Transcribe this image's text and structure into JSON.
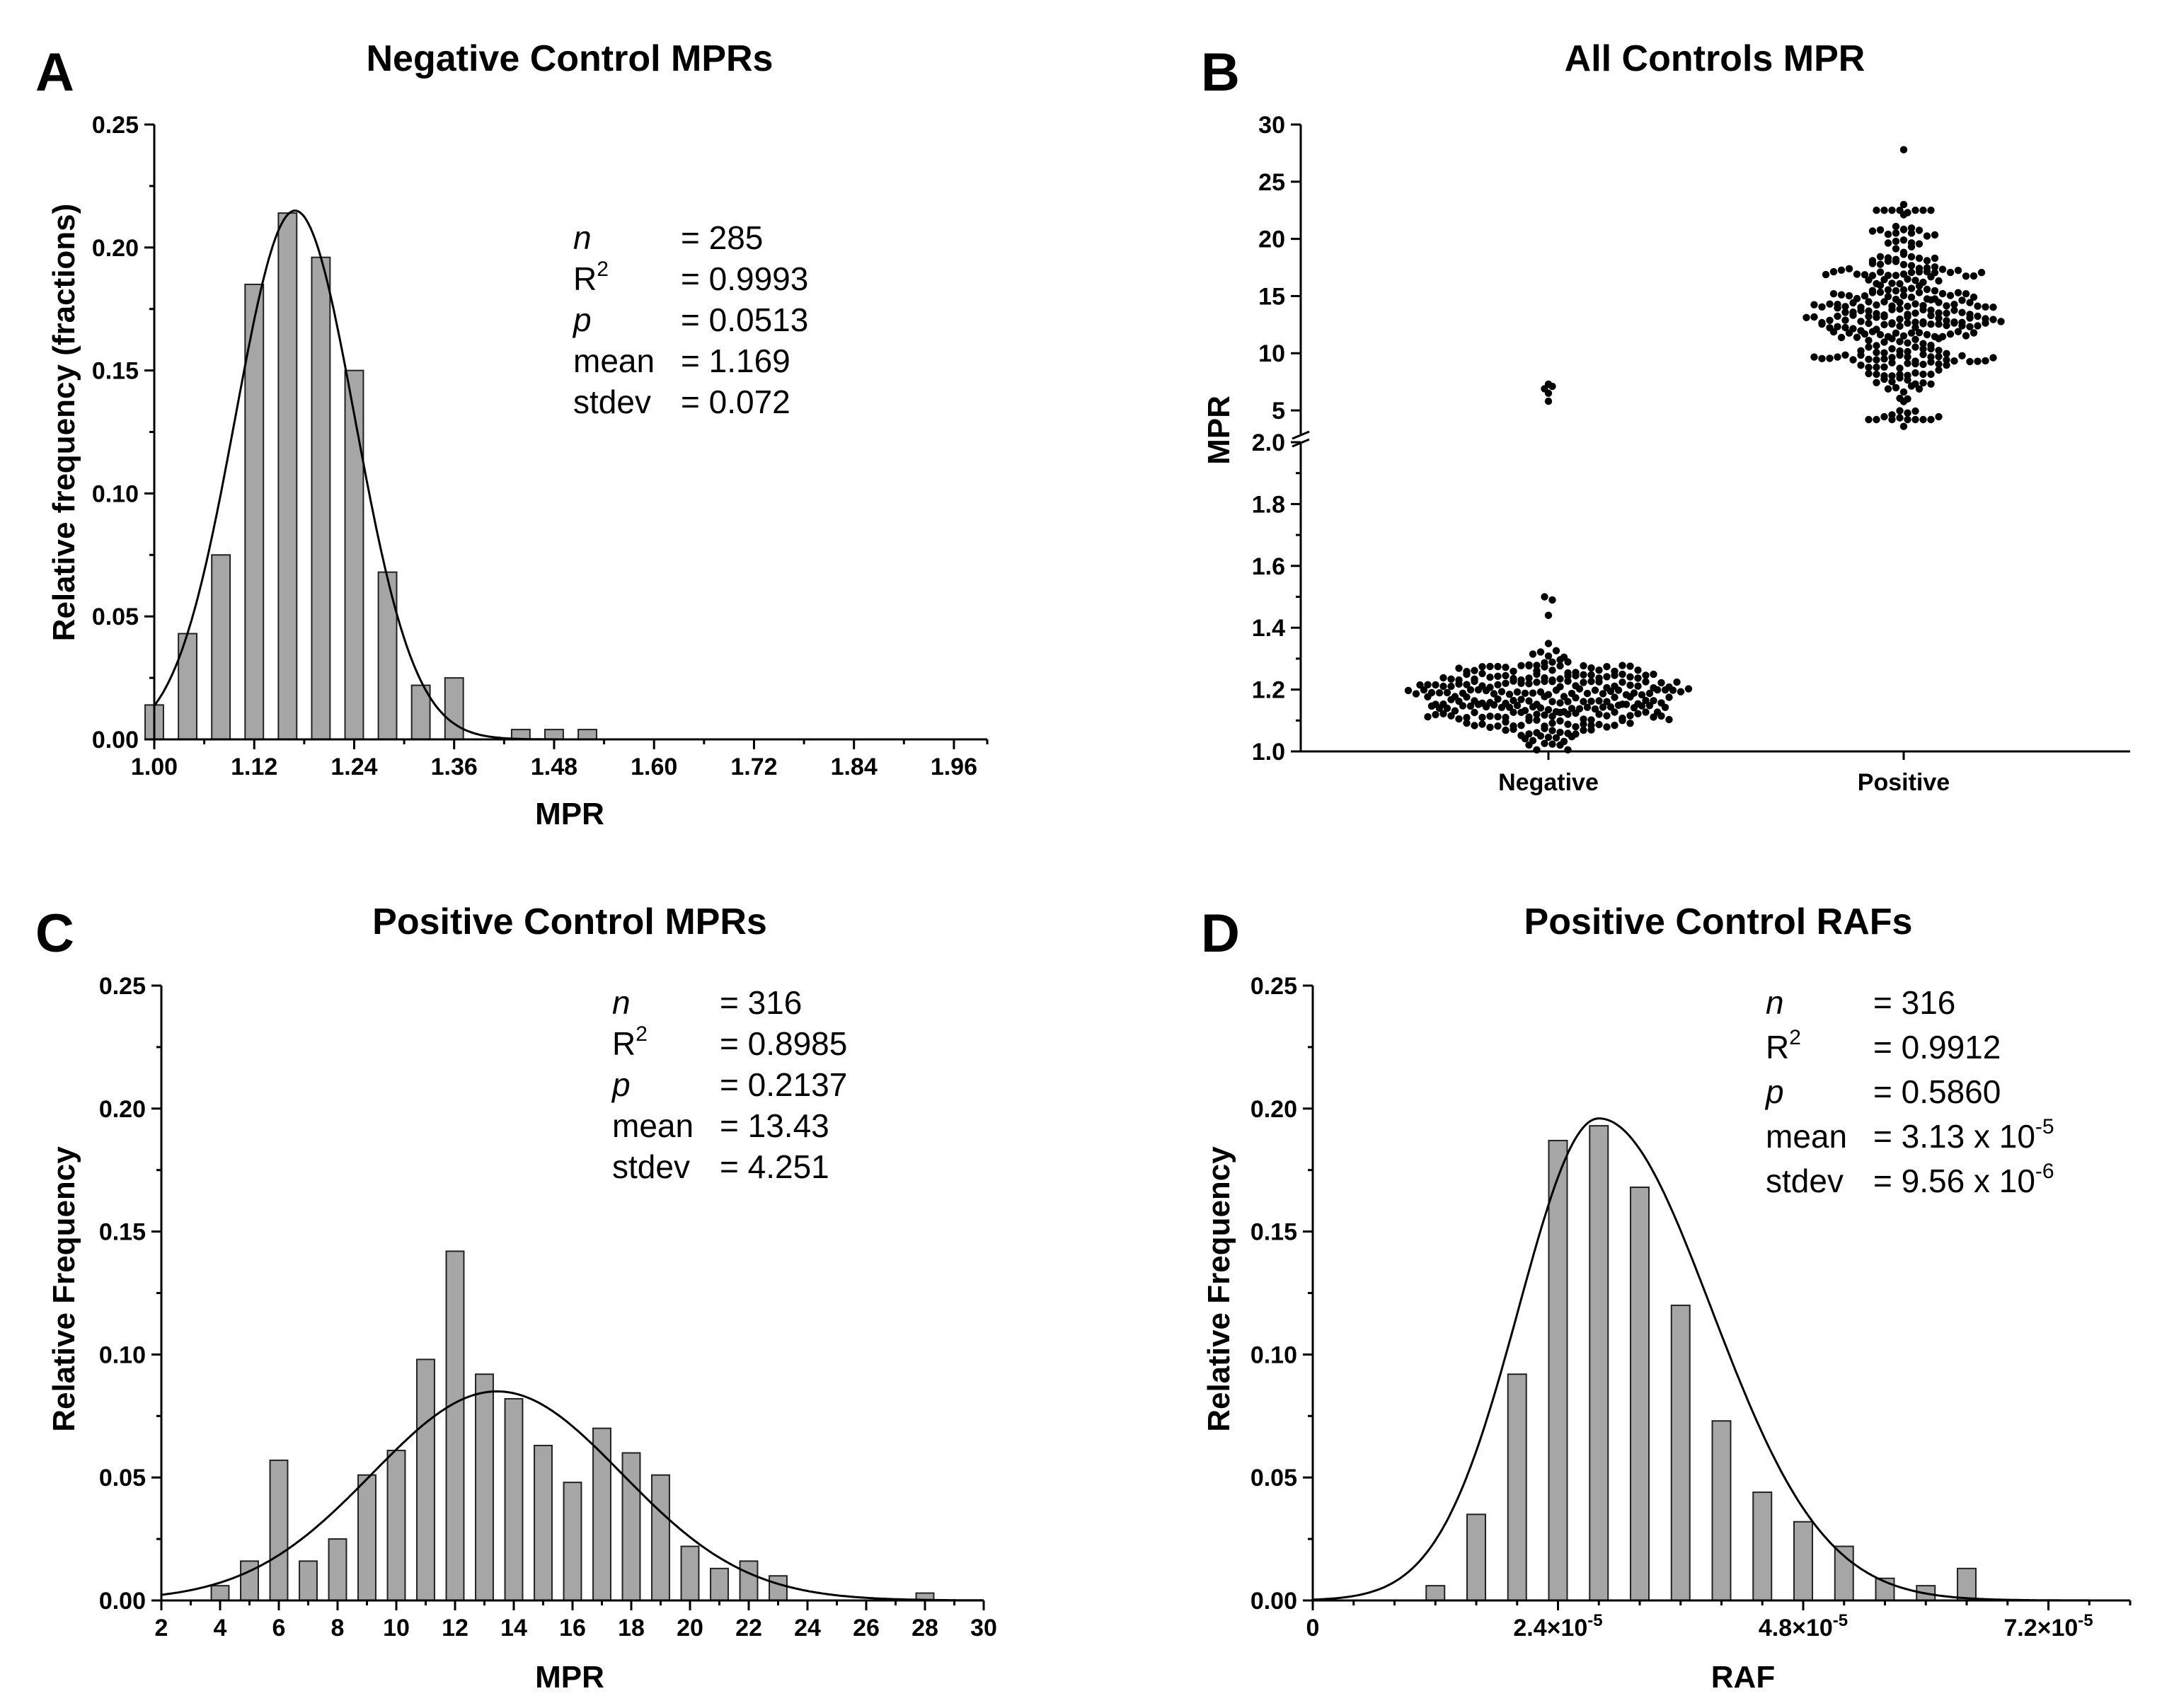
{
  "chart_data": [
    {
      "panel": "A",
      "type": "bar",
      "title": "Negative Control MPRs",
      "xlabel": "MPR",
      "ylabel": "Relative frequency (fractions)",
      "xlim": [
        1.0,
        2.0
      ],
      "ylim": [
        0,
        0.25
      ],
      "x_ticks": [
        1.0,
        1.12,
        1.24,
        1.36,
        1.48,
        1.6,
        1.72,
        1.84,
        1.96
      ],
      "x_tick_labels": [
        "1.00",
        "1.12",
        "1.24",
        "1.36",
        "1.48",
        "1.60",
        "1.72",
        "1.84",
        "1.96"
      ],
      "y_ticks": [
        0,
        0.05,
        0.1,
        0.15,
        0.2,
        0.25
      ],
      "y_tick_labels": [
        "0.00",
        "0.05",
        "0.10",
        "0.15",
        "0.20",
        "0.25"
      ],
      "bin_width": 0.04,
      "bar_fraction": 0.55,
      "x": [
        1.0,
        1.04,
        1.08,
        1.12,
        1.16,
        1.2,
        1.24,
        1.28,
        1.32,
        1.36,
        1.44,
        1.48,
        1.52
      ],
      "values": [
        0.014,
        0.043,
        0.075,
        0.185,
        0.214,
        0.196,
        0.15,
        0.068,
        0.022,
        0.025,
        0.004,
        0.004,
        0.004
      ],
      "fit": {
        "mean": 1.169,
        "sd": 0.072,
        "peak": 0.215
      },
      "stats": [
        {
          "label": "n",
          "italic": true,
          "sup": "",
          "value": "= 285",
          "vsup": ""
        },
        {
          "label": "R",
          "italic": false,
          "sup": "2",
          "value": "= 0.9993",
          "vsup": ""
        },
        {
          "label": "p",
          "italic": true,
          "sup": "",
          "value": "= 0.0513",
          "vsup": ""
        },
        {
          "label": "mean",
          "italic": false,
          "sup": "",
          "value": "= 1.169",
          "vsup": ""
        },
        {
          "label": "stdev",
          "italic": false,
          "sup": "",
          "value": "= 0.072",
          "vsup": ""
        }
      ]
    },
    {
      "panel": "B",
      "type": "scatter",
      "title": "All Controls MPR",
      "ylabel": "MPR",
      "categories": [
        "Negative",
        "Positive"
      ],
      "y_lower": {
        "range": [
          1.0,
          2.0
        ],
        "ticks": [
          1.0,
          1.2,
          1.4,
          1.6,
          1.8,
          2.0
        ],
        "tick_labels": [
          "1.0",
          "1.2",
          "1.4",
          "1.6",
          "1.8",
          "2.0"
        ]
      },
      "y_upper": {
        "range": [
          2.9,
          30
        ],
        "ticks": [
          5,
          10,
          15,
          20,
          25,
          30
        ],
        "tick_labels": [
          "5",
          "10",
          "15",
          "20",
          "25",
          "30"
        ]
      },
      "series": [
        {
          "name": "Negative",
          "n": 285,
          "mean": 1.169,
          "sd": 0.072,
          "outliers": [
            1.5,
            1.49,
            1.44,
            5.8,
            6.5,
            6.9,
            7.1,
            7.3
          ]
        },
        {
          "name": "Positive",
          "n": 316,
          "mean": 13.43,
          "sd": 4.251,
          "outliers": [
            27.8,
            3.6,
            23.0
          ]
        }
      ]
    },
    {
      "panel": "C",
      "type": "bar",
      "title": "Positive Control MPRs",
      "xlabel": "MPR",
      "ylabel": "Relative Frequency",
      "xlim": [
        2,
        30
      ],
      "ylim": [
        0,
        0.25
      ],
      "x_ticks": [
        2,
        4,
        6,
        8,
        10,
        12,
        14,
        16,
        18,
        20,
        22,
        24,
        26,
        28,
        30
      ],
      "x_tick_labels": [
        "2",
        "4",
        "6",
        "8",
        "10",
        "12",
        "14",
        "16",
        "18",
        "20",
        "22",
        "24",
        "26",
        "28",
        "30"
      ],
      "y_ticks": [
        0,
        0.05,
        0.1,
        0.15,
        0.2,
        0.25
      ],
      "y_tick_labels": [
        "0.00",
        "0.05",
        "0.10",
        "0.15",
        "0.20",
        "0.25"
      ],
      "bin_width": 1,
      "bar_fraction": 0.6,
      "x": [
        4,
        5,
        6,
        7,
        8,
        9,
        10,
        11,
        12,
        13,
        14,
        15,
        16,
        17,
        18,
        19,
        20,
        21,
        22,
        23,
        28
      ],
      "values": [
        0.006,
        0.016,
        0.057,
        0.016,
        0.025,
        0.051,
        0.061,
        0.098,
        0.142,
        0.092,
        0.082,
        0.063,
        0.048,
        0.07,
        0.06,
        0.051,
        0.022,
        0.013,
        0.016,
        0.01,
        0.003
      ],
      "fit": {
        "mean": 13.43,
        "sd": 4.251,
        "peak": 0.085
      },
      "stats": [
        {
          "label": "n",
          "italic": true,
          "sup": "",
          "value": "= 316",
          "vsup": ""
        },
        {
          "label": "R",
          "italic": false,
          "sup": "2",
          "value": "= 0.8985",
          "vsup": ""
        },
        {
          "label": "p",
          "italic": true,
          "sup": "",
          "value": "= 0.2137",
          "vsup": ""
        },
        {
          "label": "mean",
          "italic": false,
          "sup": "",
          "value": "= 13.43",
          "vsup": ""
        },
        {
          "label": "stdev",
          "italic": false,
          "sup": "",
          "value": "= 4.251",
          "vsup": ""
        }
      ]
    },
    {
      "panel": "D",
      "type": "bar",
      "title": "Positive Control RAFs",
      "xlabel": "RAF",
      "ylabel": "Relative Frequency",
      "xlim": [
        0,
        8e-05
      ],
      "ylim": [
        0,
        0.25
      ],
      "x_ticks": [
        0,
        2.4e-05,
        4.8e-05,
        7.2e-05
      ],
      "x_tick_labels": [
        "0",
        "2.4×10",
        "4.8×10",
        "7.2×10"
      ],
      "x_tick_sup": [
        "",
        "-5",
        "-5",
        "-5"
      ],
      "y_ticks": [
        0,
        0.05,
        0.1,
        0.15,
        0.2,
        0.25
      ],
      "y_tick_labels": [
        "0.00",
        "0.05",
        "0.10",
        "0.15",
        "0.20",
        "0.25"
      ],
      "bin_width": 4e-06,
      "bar_fraction": 0.45,
      "x": [
        1.2e-05,
        1.6e-05,
        2e-05,
        2.4e-05,
        2.8e-05,
        3.2e-05,
        3.6e-05,
        4e-05,
        4.4e-05,
        4.8e-05,
        5.2e-05,
        5.6e-05,
        6e-05,
        6.4e-05
      ],
      "values": [
        0.006,
        0.035,
        0.092,
        0.187,
        0.193,
        0.168,
        0.12,
        0.073,
        0.044,
        0.032,
        0.022,
        0.009,
        0.006,
        0.013
      ],
      "fit": {
        "mean": 3.13e-05,
        "sd": 9.56e-06,
        "peak": 0.196,
        "mode": 2.8e-05
      },
      "stats": [
        {
          "label": "n",
          "italic": true,
          "sup": "",
          "value": "= 316",
          "vsup": ""
        },
        {
          "label": "R",
          "italic": false,
          "sup": "2",
          "value": "= 0.9912",
          "vsup": ""
        },
        {
          "label": "p",
          "italic": true,
          "sup": "",
          "value": "= 0.5860",
          "vsup": ""
        },
        {
          "label": "mean",
          "italic": false,
          "sup": "",
          "value": "= 3.13 x 10",
          "vsup": "-5"
        },
        {
          "label": "stdev",
          "italic": false,
          "sup": "",
          "value": "= 9.56 x 10",
          "vsup": "-6"
        }
      ]
    }
  ]
}
